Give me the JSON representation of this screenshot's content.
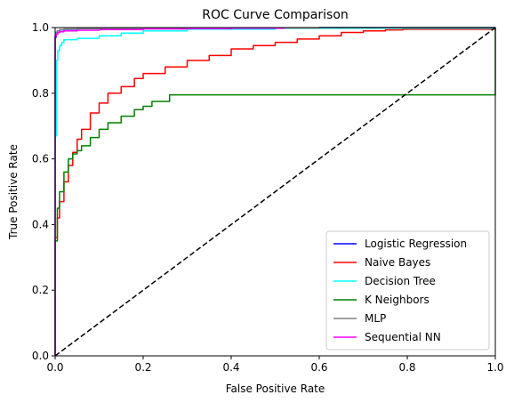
{
  "chart_data": {
    "type": "line",
    "title": "ROC Curve Comparison",
    "xlabel": "False Positive Rate",
    "ylabel": "True Positive Rate",
    "xlim": [
      0,
      1
    ],
    "ylim": [
      0,
      1
    ],
    "xticks": [
      "0.0",
      "0.2",
      "0.4",
      "0.6",
      "0.8",
      "1.0"
    ],
    "yticks": [
      "0.0",
      "0.2",
      "0.4",
      "0.6",
      "0.8",
      "1.0"
    ],
    "grid": false,
    "legend_position": "lower-right",
    "reference_line": {
      "x": [
        0,
        1
      ],
      "y": [
        0,
        1
      ],
      "color": "#000000",
      "style": "dashed"
    },
    "series": [
      {
        "name": "Logistic Regression",
        "color": "#0000ff",
        "x": [
          0,
          0,
          0.002,
          0.005,
          0.01,
          0.02,
          0.05,
          0.1,
          0.3,
          0.6,
          1.0
        ],
        "y": [
          0,
          0.97,
          0.985,
          0.99,
          0.993,
          0.995,
          0.997,
          0.998,
          0.999,
          1.0,
          1.0
        ]
      },
      {
        "name": "Naive Bayes",
        "color": "#ff0000",
        "x": [
          0,
          0,
          0.005,
          0.01,
          0.02,
          0.03,
          0.04,
          0.05,
          0.06,
          0.08,
          0.1,
          0.12,
          0.15,
          0.18,
          0.2,
          0.25,
          0.3,
          0.35,
          0.4,
          0.45,
          0.5,
          0.55,
          0.6,
          0.65,
          0.7,
          0.75,
          0.79,
          1.0
        ],
        "y": [
          0,
          0.36,
          0.42,
          0.47,
          0.53,
          0.58,
          0.62,
          0.66,
          0.69,
          0.74,
          0.77,
          0.8,
          0.82,
          0.845,
          0.86,
          0.88,
          0.9,
          0.915,
          0.935,
          0.945,
          0.955,
          0.965,
          0.975,
          0.985,
          0.99,
          0.993,
          0.995,
          1.0
        ]
      },
      {
        "name": "Decision Tree",
        "color": "#00ffff",
        "x": [
          0,
          0,
          0.003,
          0.006,
          0.01,
          0.015,
          0.02,
          0.05,
          0.1,
          0.15,
          0.2,
          0.3,
          0.5,
          1.0
        ],
        "y": [
          0,
          0.67,
          0.9,
          0.93,
          0.945,
          0.955,
          0.963,
          0.967,
          0.975,
          0.983,
          0.99,
          0.995,
          0.998,
          1.0
        ]
      },
      {
        "name": "K Neighbors",
        "color": "#008000",
        "x": [
          0,
          0,
          0.005,
          0.01,
          0.02,
          0.03,
          0.04,
          0.05,
          0.06,
          0.08,
          0.1,
          0.12,
          0.15,
          0.18,
          0.2,
          0.22,
          0.26,
          1.0
        ],
        "y": [
          0,
          0.35,
          0.45,
          0.5,
          0.56,
          0.6,
          0.615,
          0.625,
          0.64,
          0.665,
          0.69,
          0.71,
          0.73,
          0.75,
          0.76,
          0.775,
          0.795,
          1.0
        ]
      },
      {
        "name": "MLP",
        "color": "#808080",
        "x": [
          0,
          0,
          0.002,
          0.005,
          0.01,
          0.02,
          0.05,
          0.1,
          0.3,
          0.6,
          1.0
        ],
        "y": [
          0,
          0.975,
          0.985,
          0.99,
          0.994,
          0.996,
          0.997,
          0.998,
          0.999,
          1.0,
          1.0
        ]
      },
      {
        "name": "Sequential NN",
        "color": "#ff00ff",
        "x": [
          0,
          0,
          0.003,
          0.006,
          0.01,
          0.02,
          0.05,
          0.1,
          0.2,
          0.3,
          0.4,
          0.52
        ],
        "y": [
          0,
          0.975,
          0.98,
          0.985,
          0.987,
          0.99,
          0.992,
          0.994,
          0.996,
          0.997,
          0.998,
          1.0
        ]
      }
    ]
  }
}
